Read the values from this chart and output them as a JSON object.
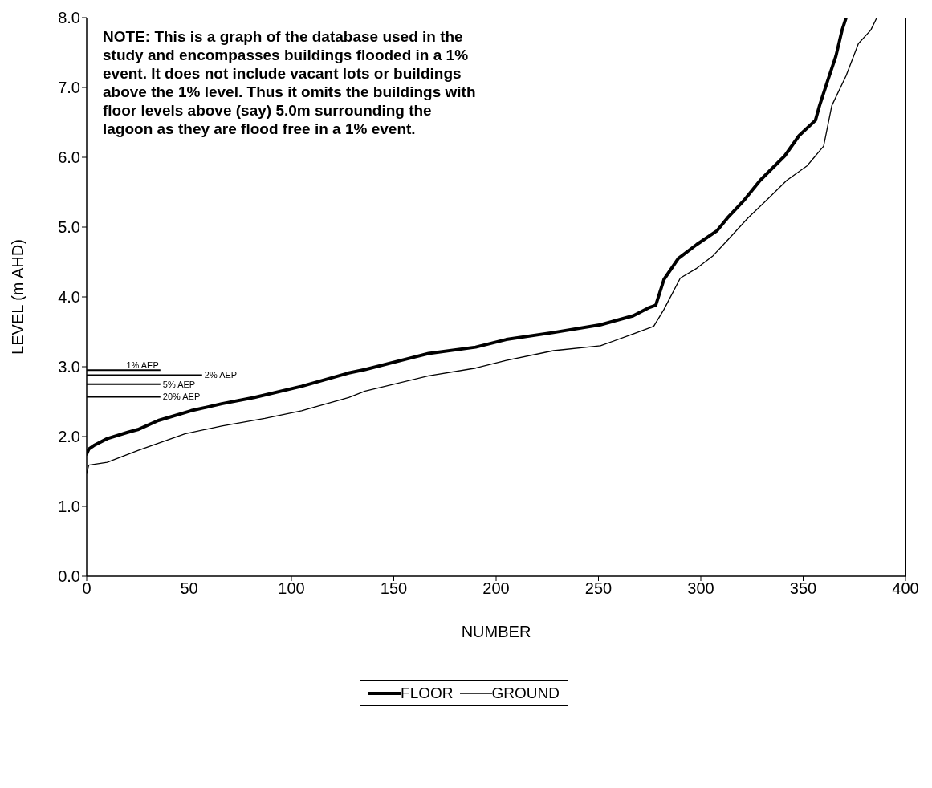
{
  "chart_data": {
    "type": "line",
    "xlabel": "NUMBER",
    "ylabel": "LEVEL (m AHD)",
    "xlim": [
      0,
      400
    ],
    "xticks": [
      0,
      50,
      100,
      150,
      200,
      250,
      300,
      350,
      400
    ],
    "ylim": [
      0,
      8
    ],
    "yticks": [
      {
        "value": 0,
        "label": "0.0"
      },
      {
        "value": 1,
        "label": "1.0"
      },
      {
        "value": 2,
        "label": "2.0"
      },
      {
        "value": 3,
        "label": "3.0"
      },
      {
        "value": 4,
        "label": "4.0"
      },
      {
        "value": 5,
        "label": "5.0"
      },
      {
        "value": 6,
        "label": "6.0"
      },
      {
        "value": 7,
        "label": "7.0"
      },
      {
        "value": 8,
        "label": "8.0"
      }
    ],
    "grid": false,
    "legend": "bottom",
    "marker": "none",
    "line_style": "solid",
    "series": [
      {
        "name": "FLOOR",
        "color": "#000000",
        "x": [
          0,
          1,
          4,
          10,
          20,
          25,
          35,
          51,
          66,
          82,
          105,
          128,
          136,
          167,
          190,
          205,
          228,
          251,
          267,
          275,
          278,
          282,
          289,
          298,
          308,
          313,
          321,
          329,
          341,
          348,
          356,
          358,
          362,
          366,
          369,
          371
        ],
        "values": [
          1.75,
          1.82,
          1.88,
          1.97,
          2.06,
          2.1,
          2.23,
          2.37,
          2.47,
          2.56,
          2.72,
          2.91,
          2.96,
          3.19,
          3.28,
          3.39,
          3.49,
          3.6,
          3.73,
          3.85,
          3.88,
          4.25,
          4.55,
          4.75,
          4.95,
          5.13,
          5.38,
          5.67,
          6.02,
          6.31,
          6.53,
          6.74,
          7.1,
          7.45,
          7.82,
          8.0
        ]
      },
      {
        "name": "GROUND",
        "color": "#000000",
        "x": [
          0,
          1,
          10,
          25,
          48,
          66,
          87,
          105,
          128,
          136,
          167,
          190,
          205,
          228,
          251,
          267,
          277,
          282,
          290,
          298,
          306,
          313,
          323,
          333,
          342,
          352,
          360,
          364,
          371,
          377,
          383,
          386
        ],
        "values": [
          1.47,
          1.59,
          1.63,
          1.8,
          2.04,
          2.15,
          2.26,
          2.37,
          2.56,
          2.65,
          2.87,
          2.98,
          3.09,
          3.23,
          3.3,
          3.47,
          3.58,
          3.82,
          4.27,
          4.41,
          4.59,
          4.81,
          5.13,
          5.41,
          5.67,
          5.88,
          6.16,
          6.74,
          7.17,
          7.63,
          7.82,
          8.0
        ]
      }
    ],
    "ref_lines": [
      {
        "axis": "y",
        "value": 2.95,
        "label": "1% AEP"
      },
      {
        "axis": "y",
        "value": 2.88,
        "label": "2% AEP"
      },
      {
        "axis": "y",
        "value": 2.75,
        "label": "5% AEP"
      },
      {
        "axis": "y",
        "value": 2.57,
        "label": "20% AEP"
      }
    ],
    "annotations": [
      "NOTE: This is a graph of the database used in the study and encompasses buildings flooded in a 1% event. It does not include vacant lots or buildings above the 1% level. Thus it omits the buildings with floor levels above (say) 5.0m surrounding the lagoon as they are flood free in a 1% event."
    ]
  }
}
